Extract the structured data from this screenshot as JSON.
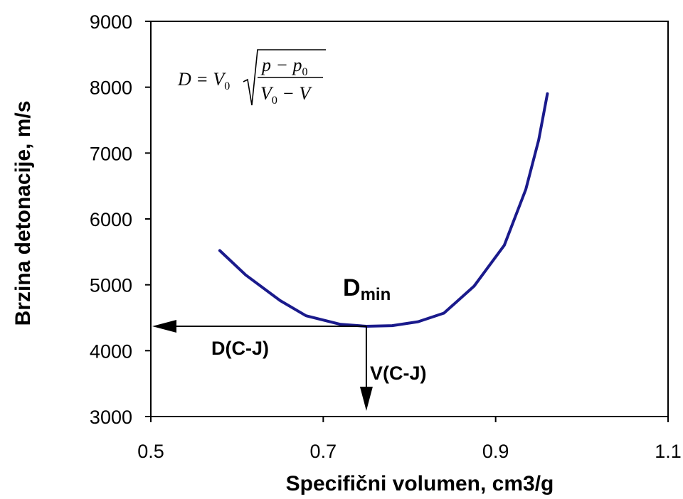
{
  "chart_data": {
    "type": "line",
    "xlabel": "Specifični volumen, cm3/g",
    "ylabel": "Brzina detonacije, m/s",
    "xlim": [
      0.5,
      1.1
    ],
    "ylim": [
      3000,
      9000
    ],
    "xticks": [
      "0.5",
      "0.7",
      "0.9",
      "1.1"
    ],
    "yticks": [
      "3000",
      "4000",
      "5000",
      "6000",
      "7000",
      "8000",
      "9000"
    ],
    "grid": false,
    "series": [
      {
        "color": "#1a1a8c",
        "x": [
          0.58,
          0.61,
          0.65,
          0.68,
          0.72,
          0.75,
          0.78,
          0.81,
          0.84,
          0.875,
          0.91,
          0.935,
          0.95,
          0.96
        ],
        "y": [
          5520,
          5150,
          4760,
          4530,
          4400,
          4370,
          4380,
          4440,
          4570,
          4980,
          5600,
          6450,
          7200,
          7900
        ]
      }
    ],
    "annotations": {
      "dmin_main": "D",
      "dmin_sub": "min",
      "d_cj": "D(C-J)",
      "v_cj": "V(C-J)",
      "cj_point": {
        "x": 0.75,
        "y": 4370
      }
    },
    "formula": {
      "lhs": "D = V",
      "sub0": "0",
      "num": "p − p",
      "num_sub": "0",
      "den": "V",
      "den_sub": "0",
      "den_rest": " − V"
    }
  }
}
